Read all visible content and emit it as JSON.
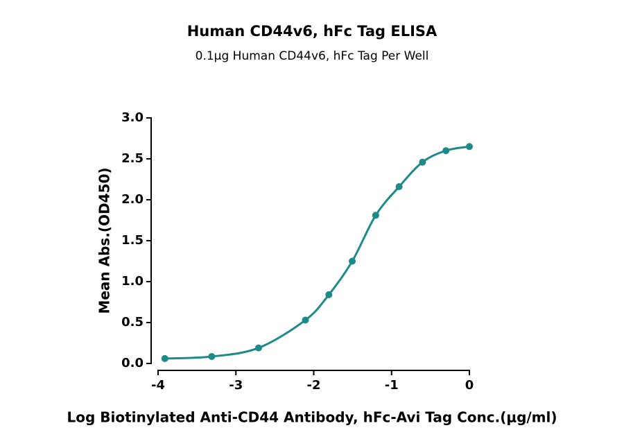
{
  "chart_data": {
    "type": "line",
    "title": "Human CD44v6, hFc Tag ELISA",
    "subtitle": "0.1μg Human CD44v6, hFc Tag Per Well",
    "x_label": "Log Biotinylated Anti-CD44 Antibody, hFc-Avi Tag Conc.(μg/ml)",
    "y_label": "Mean Abs.(OD450)",
    "x": [
      -3.913,
      -3.311,
      -2.709,
      -2.107,
      -1.806,
      -1.505,
      -1.204,
      -0.903,
      -0.602,
      -0.301,
      0
    ],
    "series": [
      {
        "color": "#1b8a89",
        "values": [
          0.06,
          0.085,
          0.19,
          0.53,
          0.84,
          1.25,
          1.81,
          2.16,
          2.46,
          2.6,
          2.65
        ]
      }
    ],
    "xlim": [
      -4,
      0
    ],
    "xticks": [
      -4,
      -3,
      -2,
      -1,
      0
    ],
    "ylim": [
      0,
      3
    ],
    "yticks": [
      {
        "value": 0,
        "label": "0.0"
      },
      {
        "value": 0.5,
        "label": "0.5"
      },
      {
        "value": 1,
        "label": "1.0"
      },
      {
        "value": 1.5,
        "label": "1.5"
      },
      {
        "value": 2,
        "label": "2.0"
      },
      {
        "value": 2.5,
        "label": "2.5"
      },
      {
        "value": 3,
        "label": "3.0"
      }
    ],
    "grid": false
  }
}
